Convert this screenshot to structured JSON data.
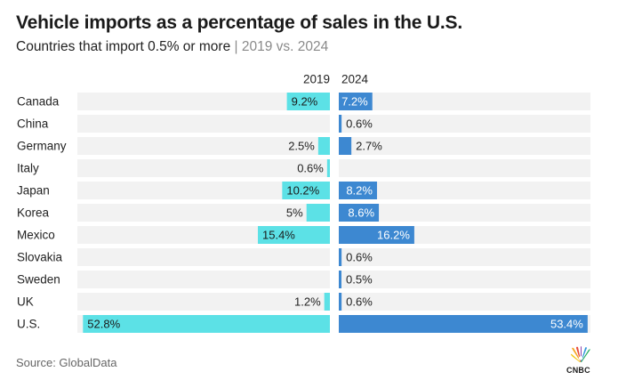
{
  "title": "Vehicle imports as a percentage of sales in the U.S.",
  "subtitle": {
    "main": "Countries that import 0.5% or more",
    "separator": " | ",
    "secondary": "2019 vs. 2024"
  },
  "source": "Source: GlobalData",
  "logo_text": "CNBC",
  "colors": {
    "series_2019": "#5ce1e6",
    "series_2024": "#3d88d1",
    "track": "#f2f2f2",
    "text": "#222222",
    "label_inside": "#ffffff"
  },
  "chart_data": {
    "type": "bar",
    "orientation": "horizontal",
    "layout": "butterfly",
    "categories": [
      "Canada",
      "China",
      "Germany",
      "Italy",
      "Japan",
      "Korea",
      "Mexico",
      "Slovakia",
      "Sweden",
      "UK",
      "U.S."
    ],
    "series": [
      {
        "name": "2019",
        "values": [
          9.2,
          null,
          2.5,
          0.6,
          10.2,
          5,
          15.4,
          null,
          null,
          1.2,
          52.8
        ],
        "labels": [
          "9.2%",
          "",
          "2.5%",
          "0.6%",
          "10.2%",
          "5%",
          "15.4%",
          "",
          "",
          "1.2%",
          "52.8%"
        ]
      },
      {
        "name": "2024",
        "values": [
          7.2,
          0.6,
          2.7,
          null,
          8.2,
          8.6,
          16.2,
          0.6,
          0.5,
          0.6,
          53.4
        ],
        "labels": [
          "7.2%",
          "0.6%",
          "2.7%",
          "",
          "8.2%",
          "8.6%",
          "16.2%",
          "0.6%",
          "0.5%",
          "0.6%",
          "53.4%"
        ]
      }
    ],
    "xlim": [
      0,
      54
    ],
    "unit": "%",
    "grid": false,
    "legend": "column headers above bars"
  }
}
